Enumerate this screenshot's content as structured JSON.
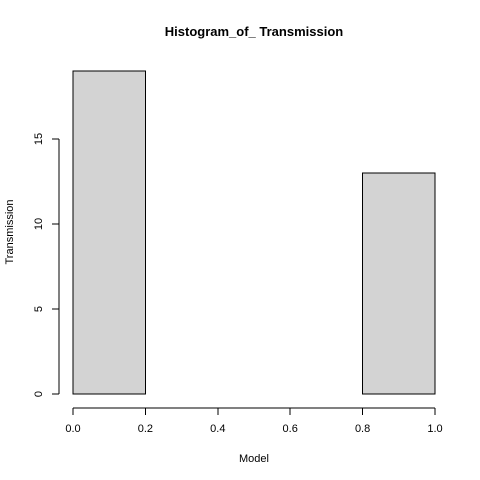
{
  "chart_data": {
    "type": "bar",
    "title": "Histogram_of_ Transmission",
    "xlabel": "Model",
    "ylabel": "Transmission",
    "bins": [
      {
        "start": 0.0,
        "end": 0.2,
        "value": 19
      },
      {
        "start": 0.2,
        "end": 0.4,
        "value": 0
      },
      {
        "start": 0.4,
        "end": 0.6,
        "value": 0
      },
      {
        "start": 0.6,
        "end": 0.8,
        "value": 0
      },
      {
        "start": 0.8,
        "end": 1.0,
        "value": 13
      }
    ],
    "xlim": [
      0,
      1
    ],
    "ylim": [
      0,
      19
    ],
    "x_ticks": [
      0,
      0.2,
      0.4,
      0.6,
      0.8,
      1.0
    ],
    "x_tick_labels": [
      "0.0",
      "0.2",
      "0.4",
      "0.6",
      "0.8",
      "1.0"
    ],
    "y_ticks": [
      0,
      5,
      10,
      15
    ],
    "y_tick_labels": [
      "0",
      "5",
      "10",
      "15"
    ],
    "bar_fill": "#d3d3d3",
    "bar_stroke": "#000000",
    "grid": false,
    "legend": "none"
  }
}
